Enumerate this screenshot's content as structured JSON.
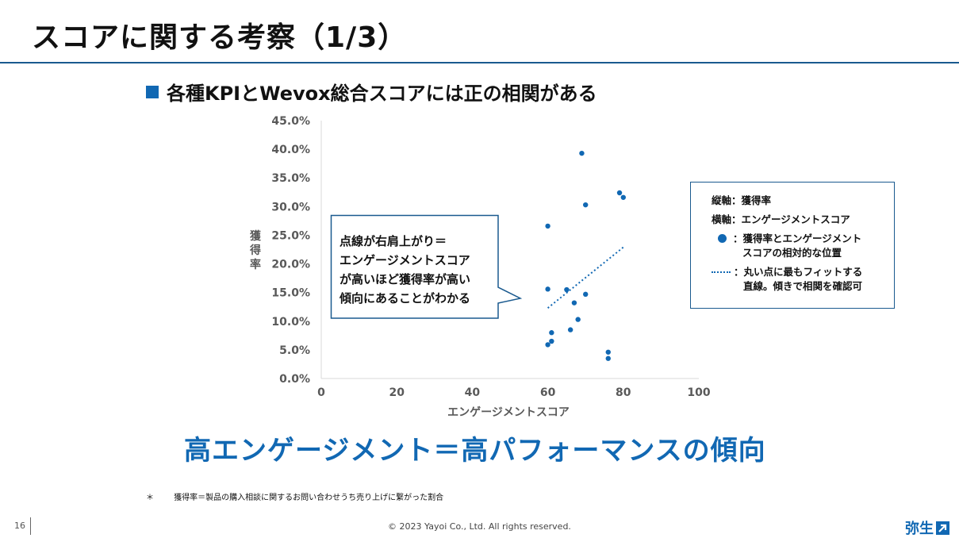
{
  "header": {
    "title": "スコアに関する考察（1/3）"
  },
  "subtitle": "各種KPIとWevox総合スコアには正の相関がある",
  "chart_data": {
    "type": "scatter",
    "title": "",
    "xlabel": "エンゲージメントスコア",
    "ylabel": "獲得率",
    "xlim": [
      0,
      100
    ],
    "ylim": [
      0,
      45
    ],
    "x_ticks": [
      "0",
      "20",
      "40",
      "60",
      "80",
      "100"
    ],
    "y_ticks": [
      "0.0%",
      "5.0%",
      "10.0%",
      "15.0%",
      "20.0%",
      "25.0%",
      "30.0%",
      "35.0%",
      "40.0%",
      "45.0%"
    ],
    "grid": false,
    "points": [
      {
        "x": 60,
        "y": 26.6
      },
      {
        "x": 60,
        "y": 15.6
      },
      {
        "x": 60,
        "y": 5.9
      },
      {
        "x": 61,
        "y": 6.5
      },
      {
        "x": 61,
        "y": 8.0
      },
      {
        "x": 65,
        "y": 15.5
      },
      {
        "x": 66,
        "y": 8.5
      },
      {
        "x": 67,
        "y": 13.2
      },
      {
        "x": 68,
        "y": 10.3
      },
      {
        "x": 69,
        "y": 39.3
      },
      {
        "x": 70,
        "y": 30.3
      },
      {
        "x": 70,
        "y": 14.7
      },
      {
        "x": 76,
        "y": 4.6
      },
      {
        "x": 76,
        "y": 3.5
      },
      {
        "x": 79,
        "y": 32.4
      },
      {
        "x": 80,
        "y": 31.6
      }
    ],
    "trendline": {
      "x": [
        60,
        80
      ],
      "y": [
        12.3,
        22.9
      ]
    },
    "colors": {
      "point": "#1168b3",
      "trend": "#1168b3",
      "axis": "#d9d9d9",
      "tick_text": "#595959"
    }
  },
  "callout": {
    "lines": [
      "点線が右肩上がり＝",
      "エンゲージメントスコア",
      "が高いほど獲得率が高い",
      "傾向にあることがわかる"
    ]
  },
  "legend": {
    "y_axis": "縦軸：獲得率",
    "x_axis": "横軸：エンゲージメントスコア",
    "dot_line1": "：獲得率とエンゲージメント",
    "dot_line2": "スコアの相対的な位置",
    "trend_line1": "：丸い点に最もフィットする",
    "trend_line2": "直線。傾きで相関を確認可"
  },
  "headline": "高エンゲージメント＝高パフォーマンスの傾向",
  "footnote": {
    "mark": "＊",
    "text": "獲得率＝製品の購入相談に関するお問い合わせうち売り上げに繋がった割合"
  },
  "footer": {
    "page": "16",
    "copyright": "© 2023 Yayoi Co., Ltd.  All rights reserved.",
    "logo": "弥生"
  }
}
